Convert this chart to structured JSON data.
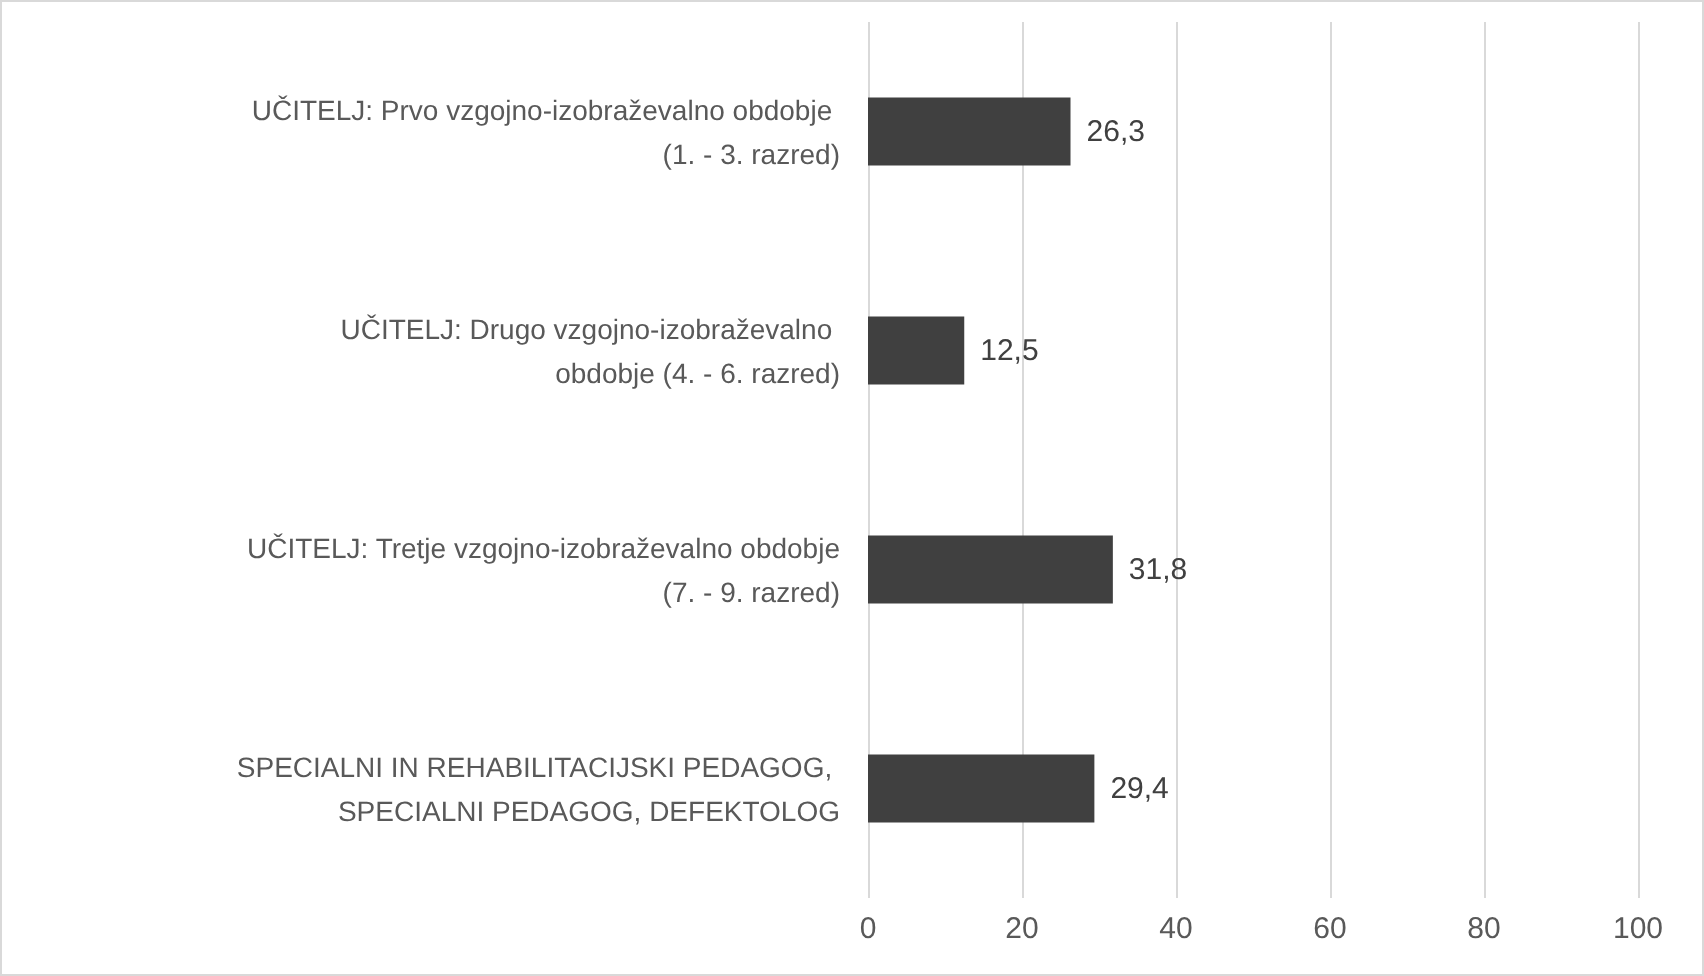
{
  "chart_data": {
    "type": "bar",
    "orientation": "horizontal",
    "categories": [
      "UČITELJ: Prvo vzgojno-izobraževalno obdobje (1. - 3. razred)",
      "UČITELJ: Drugo vzgojno-izobraževalno obdobje (4. - 6. razred)",
      "UČITELJ: Tretje vzgojno-izobraževalno obdobje (7. - 9. razred)",
      "SPECIALNI IN REHABILITACIJSKI PEDAGOG, SPECIALNI PEDAGOG, DEFEKTOLOG"
    ],
    "values": [
      26.3,
      12.5,
      31.8,
      29.4
    ],
    "value_labels": [
      "26,3",
      "12,5",
      "31,8",
      "29,4"
    ],
    "color": "#404040",
    "xlim": [
      0,
      100
    ],
    "xticks": [
      0,
      20,
      40,
      60,
      80,
      100
    ],
    "grid": "x"
  }
}
